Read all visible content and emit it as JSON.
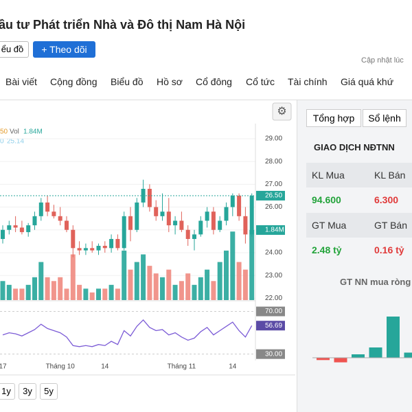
{
  "header": {
    "title": "ầu tư Phát triển Nhà và Đô thị Nam Hà Nội",
    "chart_button": "ểu đồ",
    "follow_button": "+ Theo dõi",
    "updated": "Cập nhật lúc"
  },
  "tabs": [
    "Bài viết",
    "Cộng đồng",
    "Biểu đồ",
    "Hồ sơ",
    "Cổ đông",
    "Cổ tức",
    "Tài chính",
    "Giá quá khứ"
  ],
  "chart_data": {
    "type": "candlestick",
    "legend": {
      "ma_period": "50",
      "vol_label": "Vol",
      "vol_value": "1.84M",
      "ma2_period": "0",
      "ma2_value": "25.14"
    },
    "categories": [
      "17",
      null,
      null,
      null,
      null,
      null,
      null,
      null,
      null,
      "Tháng 10",
      null,
      null,
      null,
      null,
      null,
      null,
      "14",
      null,
      null,
      null,
      null,
      null,
      null,
      null,
      null,
      null,
      null,
      null,
      "Tháng 11",
      null,
      null,
      null,
      null,
      null,
      null,
      null,
      "14",
      null,
      null,
      null
    ],
    "open": [
      24.6,
      25.0,
      25.2,
      25.1,
      24.9,
      25.2,
      25.6,
      26.2,
      25.8,
      25.6,
      25.4,
      25.0,
      24.2,
      24.1,
      24.2,
      24.1,
      24.3,
      24.2,
      24.6,
      24.2,
      25.6,
      25.0,
      26.2,
      26.8,
      26.0,
      25.6,
      25.8,
      25.2,
      25.4,
      25.0,
      24.6,
      24.8,
      25.4,
      25.8,
      25.0,
      25.4,
      26.0,
      26.5,
      25.6,
      24.8
    ],
    "high": [
      25.2,
      25.4,
      25.6,
      25.4,
      25.3,
      25.8,
      26.4,
      26.5,
      26.1,
      26.0,
      25.6,
      25.2,
      24.5,
      24.4,
      24.5,
      24.4,
      24.5,
      24.8,
      24.8,
      25.8,
      26.0,
      26.4,
      27.2,
      27.0,
      26.3,
      26.6,
      26.4,
      25.6,
      25.8,
      25.2,
      25.0,
      25.6,
      26.0,
      26.0,
      25.6,
      26.2,
      26.6,
      26.6,
      26.0,
      26.6
    ],
    "low": [
      24.4,
      24.8,
      24.9,
      24.8,
      24.7,
      25.0,
      25.4,
      25.6,
      25.5,
      25.2,
      24.9,
      23.8,
      23.9,
      23.9,
      24.0,
      23.9,
      24.0,
      24.0,
      24.1,
      24.1,
      24.5,
      24.9,
      26.0,
      25.8,
      25.4,
      25.4,
      24.9,
      24.8,
      24.9,
      24.3,
      24.1,
      24.7,
      25.1,
      24.8,
      24.9,
      25.2,
      25.6,
      25.4,
      24.4,
      24.7
    ],
    "close": [
      25.0,
      25.2,
      25.1,
      24.9,
      25.2,
      25.6,
      26.2,
      25.8,
      25.6,
      25.4,
      25.0,
      24.2,
      24.1,
      24.2,
      24.1,
      24.3,
      24.2,
      24.6,
      24.2,
      25.6,
      25.0,
      26.2,
      26.8,
      26.0,
      25.6,
      25.8,
      25.2,
      25.4,
      25.0,
      24.6,
      24.8,
      25.4,
      25.8,
      25.0,
      25.4,
      26.0,
      26.5,
      25.6,
      24.8,
      26.5
    ],
    "volume": [
      0.5,
      0.4,
      0.3,
      0.3,
      0.4,
      0.6,
      1.0,
      0.6,
      0.5,
      0.6,
      0.3,
      1.2,
      0.4,
      0.3,
      0.2,
      0.3,
      0.3,
      0.4,
      0.3,
      1.3,
      0.8,
      1.0,
      1.2,
      0.9,
      0.7,
      0.6,
      0.8,
      0.4,
      0.5,
      0.7,
      0.4,
      0.6,
      0.8,
      0.5,
      1.0,
      1.3,
      1.8,
      1.0,
      0.8,
      1.84
    ],
    "rsi": [
      48,
      50,
      49,
      47,
      50,
      53,
      58,
      54,
      52,
      50,
      46,
      38,
      37,
      38,
      37,
      39,
      38,
      42,
      39,
      52,
      47,
      56,
      62,
      55,
      52,
      53,
      48,
      50,
      46,
      43,
      45,
      51,
      55,
      48,
      52,
      56,
      60,
      52,
      46,
      56.69
    ],
    "ylim": [
      21.92,
      29.3
    ],
    "yticks": [
      {
        "value": 29,
        "label": "29.00"
      },
      {
        "value": 28,
        "label": "28.00"
      },
      {
        "value": 27,
        "label": "27.00"
      },
      {
        "value": 26,
        "label": "26.00"
      },
      {
        "value": 25,
        "label": "25.00"
      },
      {
        "value": 24,
        "label": "24.00"
      },
      {
        "value": 23,
        "label": "23.00"
      },
      {
        "value": 22,
        "label": "22.00"
      }
    ],
    "last_price": {
      "value": 26.5,
      "label": "26.50"
    },
    "last_volume": {
      "value": 1.84,
      "label": "1.84M"
    },
    "rsi_ylim": [
      24,
      80
    ],
    "rsi_ticks": [
      {
        "value": 70,
        "label": "70.00"
      },
      {
        "value": 30,
        "label": "30.00"
      }
    ],
    "last_rsi": {
      "value": 56.69,
      "label": "56.69"
    },
    "up_color": "#26a69a",
    "down_color": "#ef8a80",
    "ranges": [
      "1y",
      "3y",
      "5y"
    ]
  },
  "panel": {
    "tabs": [
      "Tổng hợp",
      "Sổ lệnh"
    ],
    "title": "GIAO DỊCH NĐTNN",
    "rows": [
      [
        "KL Mua",
        "KL Bán"
      ],
      [
        "94.600",
        "6.300"
      ],
      [
        "GT Mua",
        "GT Bán"
      ],
      [
        "2.48 tỷ",
        "0.16 tỷ"
      ]
    ],
    "net_title": "GT NN mua ròng",
    "net_values": [
      -0.4,
      -0.8,
      0.6,
      1.8,
      7.2,
      0.9
    ]
  }
}
